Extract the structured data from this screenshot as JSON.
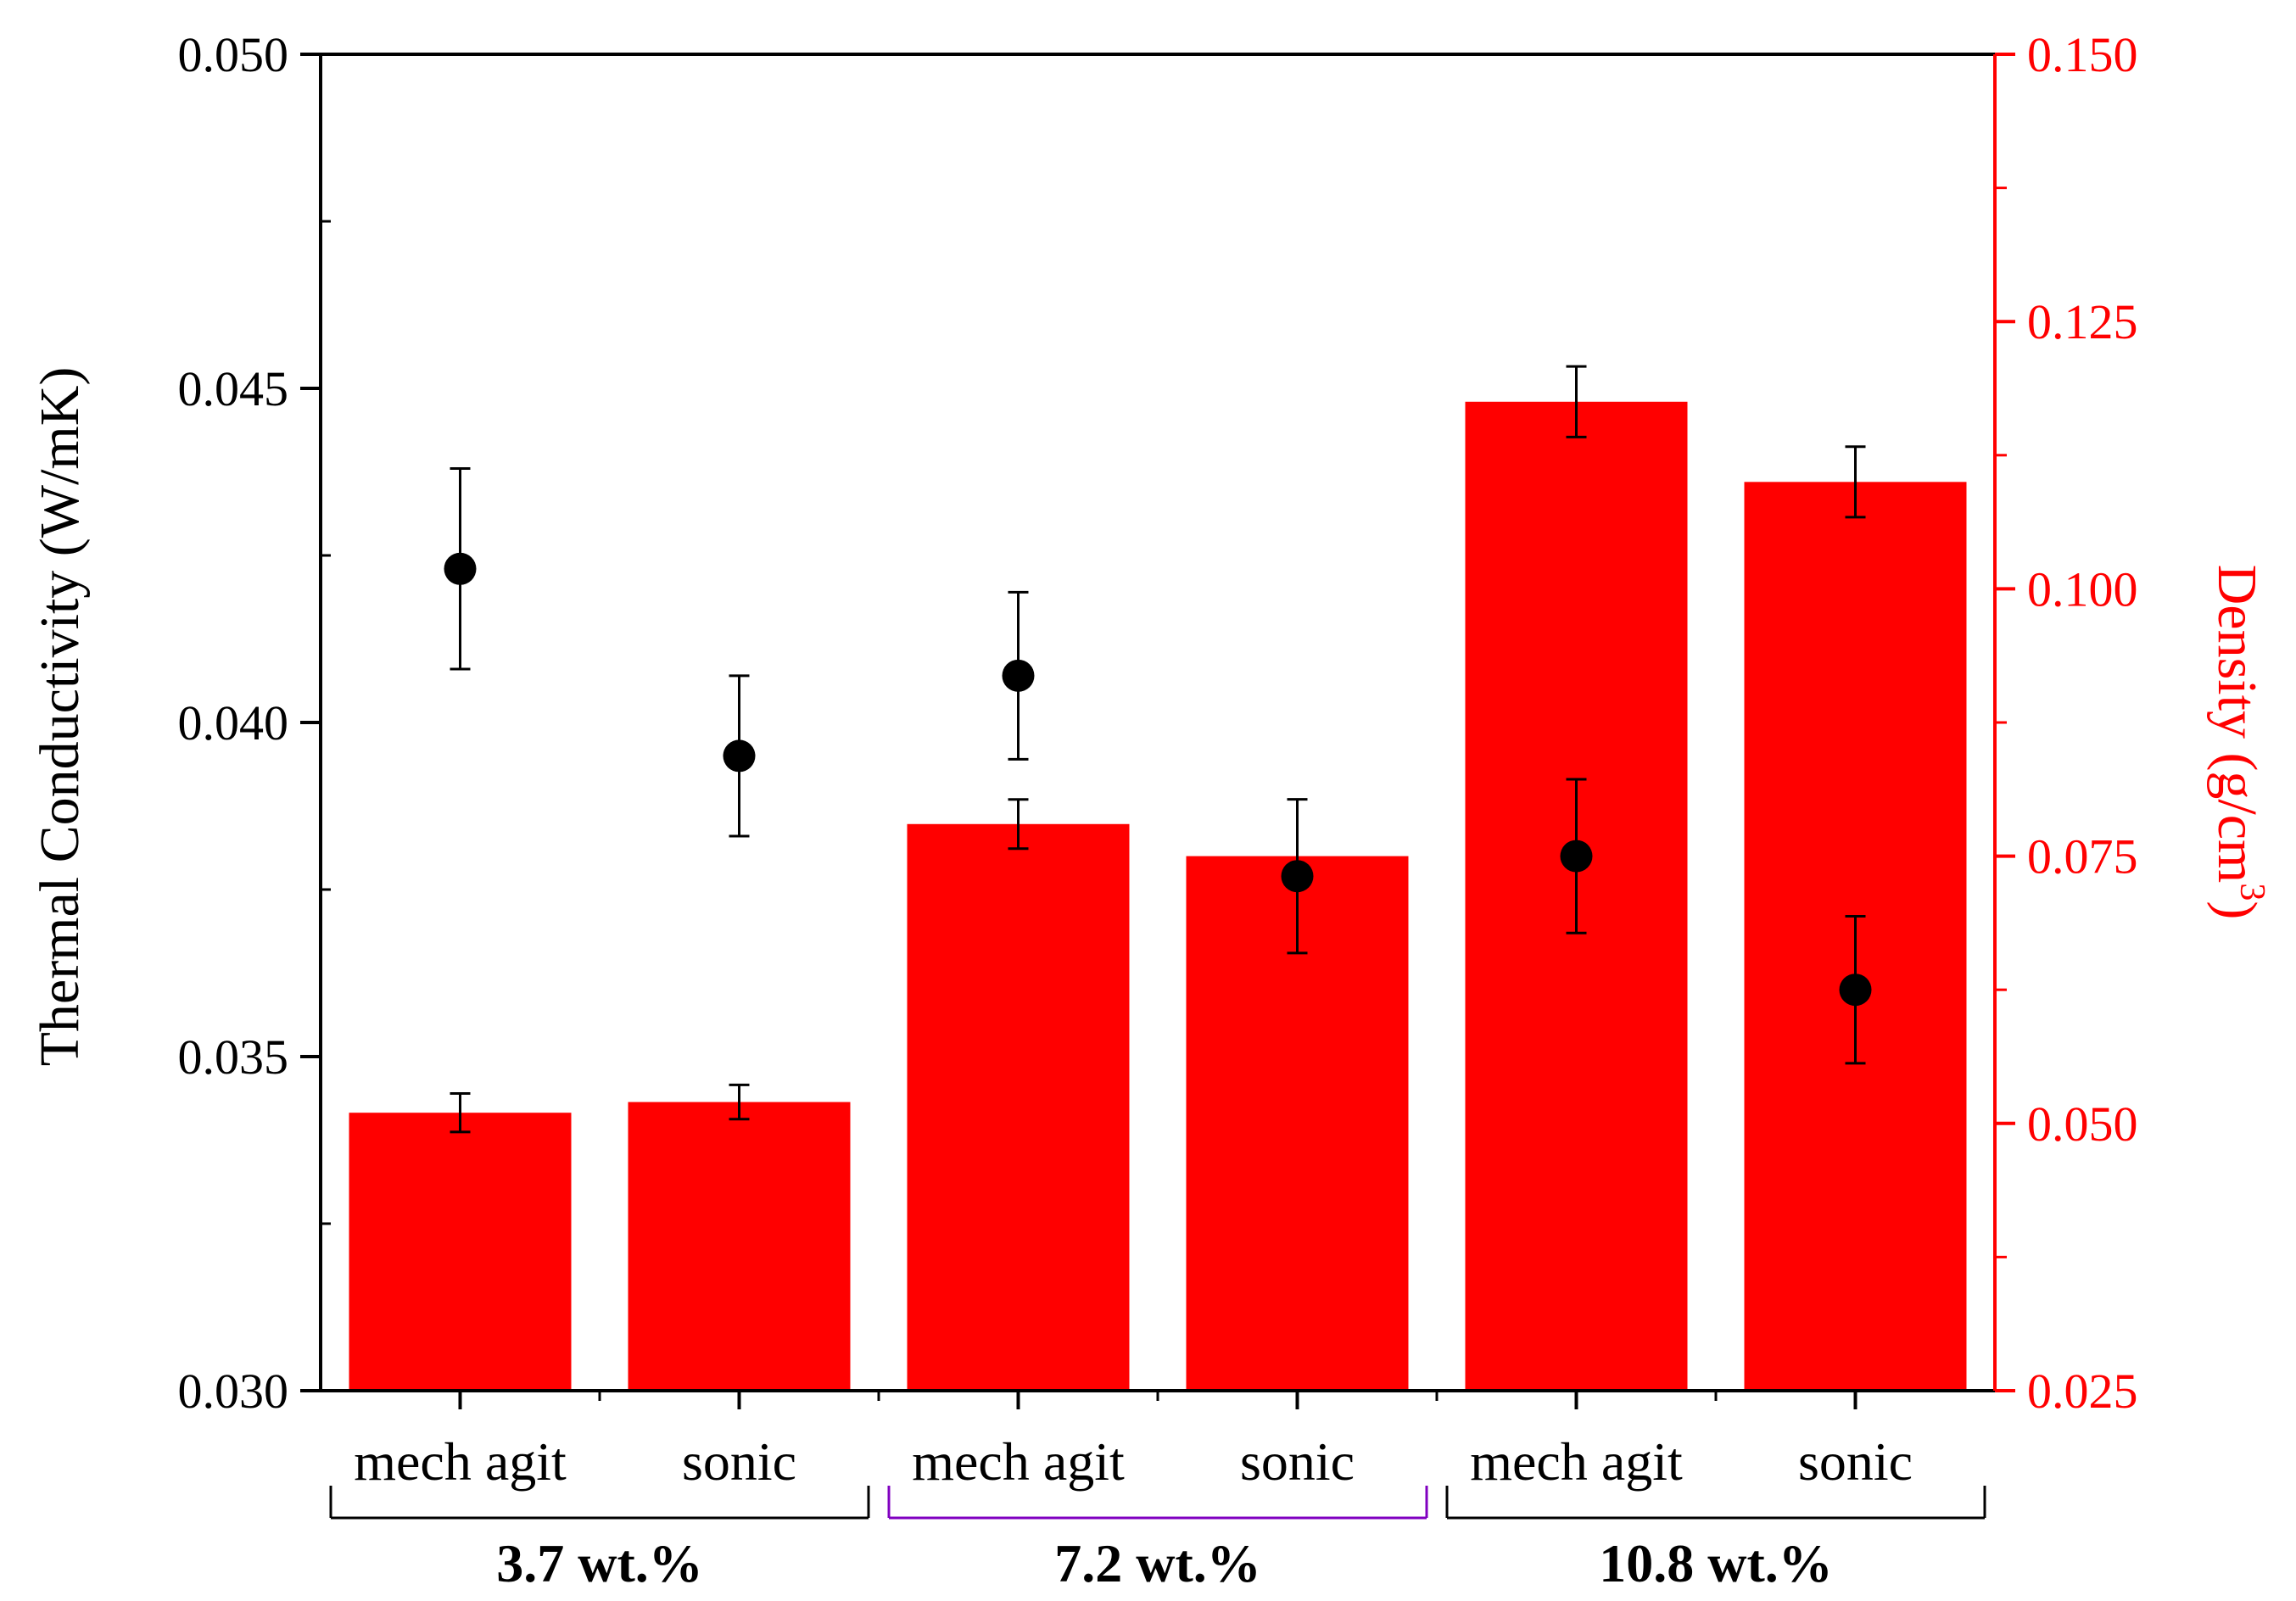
{
  "chart_data": {
    "type": "bar",
    "left_axis": {
      "label": "Thermal Conductivity (W/mK)",
      "range": [
        0.03,
        0.05
      ],
      "ticks": [
        "0.030",
        "0.035",
        "0.040",
        "0.045",
        "0.050"
      ],
      "color": "#000000"
    },
    "right_axis": {
      "label": "Density (g/cm",
      "label_sup": "3",
      "label_tail": ")",
      "range": [
        0.025,
        0.15
      ],
      "ticks": [
        "0.025",
        "0.050",
        "0.075",
        "0.100",
        "0.125",
        "0.150"
      ],
      "color": "#ff0000"
    },
    "categories": [
      "mech agit",
      "sonic",
      "mech agit",
      "sonic",
      "mech agit",
      "sonic"
    ],
    "groups": [
      {
        "label": "3.7 wt.%",
        "members": [
          0,
          1
        ],
        "bracket_color": "#000000"
      },
      {
        "label": "7.2 wt.%",
        "members": [
          2,
          3
        ],
        "bracket_color": "#8000c0"
      },
      {
        "label": "10.8 wt.%",
        "members": [
          4,
          5
        ],
        "bracket_color": "#000000"
      }
    ],
    "series": [
      {
        "name": "Density",
        "type": "bar",
        "axis": "right",
        "color": "#ff0000",
        "values": [
          0.051,
          0.052,
          0.078,
          0.075,
          0.1175,
          0.11
        ],
        "errors": [
          0.0018,
          0.0016,
          0.0023,
          0.0,
          0.0033,
          0.0033
        ]
      },
      {
        "name": "Thermal Conductivity",
        "type": "scatter",
        "axis": "left",
        "color": "#000000",
        "values": [
          0.0423,
          0.0395,
          0.0407,
          0.0377,
          0.038,
          0.036
        ],
        "errors": [
          0.0015,
          0.0012,
          0.00125,
          0.00115,
          0.00115,
          0.0011
        ]
      }
    ]
  }
}
